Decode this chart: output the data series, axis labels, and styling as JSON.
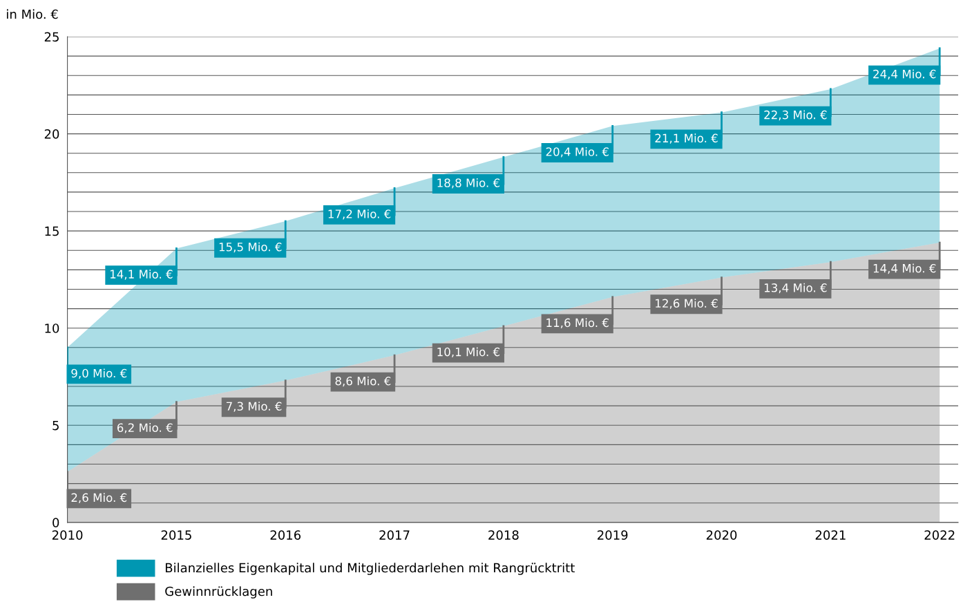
{
  "chart_data": {
    "type": "area",
    "ylabel": "in Mio. €",
    "categories": [
      "2010",
      "2015",
      "2016",
      "2017",
      "2018",
      "2019",
      "2020",
      "2021",
      "2022"
    ],
    "series": [
      {
        "name": "Bilanzielles Eigenkapital und Mitgliederdarlehen mit Rangrücktritt",
        "color": "#0097b2",
        "values": [
          9.0,
          14.1,
          15.5,
          17.2,
          18.8,
          20.4,
          21.1,
          22.3,
          24.4
        ],
        "value_labels": [
          "9,0 Mio. €",
          "14,1 Mio. €",
          "15,5 Mio. €",
          "17,2 Mio. €",
          "18,8 Mio. €",
          "20,4 Mio. €",
          "21,1 Mio. €",
          "22,3 Mio. €",
          "24,4 Mio. €"
        ]
      },
      {
        "name": "Gewinnrücklagen",
        "color": "#6f6f6f",
        "values": [
          2.6,
          6.2,
          7.3,
          8.6,
          10.1,
          11.6,
          12.6,
          13.4,
          14.4
        ],
        "value_labels": [
          "2,6 Mio. €",
          "6,2 Mio. €",
          "7,3 Mio. €",
          "8,6 Mio. €",
          "10,1 Mio. €",
          "11,6 Mio. €",
          "12,6 Mio. €",
          "13,4 Mio. €",
          "14,4 Mio. €"
        ]
      }
    ],
    "ylim": [
      0,
      25
    ],
    "yticks": [
      0,
      {
        "value": 1,
        "label": null
      },
      {
        "value": 2,
        "label": null
      },
      {
        "value": 3,
        "label": null
      },
      {
        "value": 4,
        "label": null
      },
      5,
      {
        "value": 6,
        "label": null
      },
      {
        "value": 7,
        "label": null
      },
      {
        "value": 8,
        "label": null
      },
      {
        "value": 9,
        "label": null
      },
      10,
      {
        "value": 11,
        "label": null
      },
      {
        "value": 12,
        "label": null
      },
      {
        "value": 13,
        "label": null
      },
      {
        "value": 14,
        "label": null
      },
      15,
      {
        "value": 16,
        "label": null
      },
      {
        "value": 17,
        "label": null
      },
      {
        "value": 18,
        "label": null
      },
      {
        "value": 19,
        "label": null
      },
      20,
      {
        "value": 21,
        "label": null
      },
      {
        "value": 22,
        "label": null
      },
      {
        "value": 23,
        "label": null
      },
      {
        "value": 24,
        "label": null
      },
      25
    ],
    "grid": "y",
    "legend": "bottom left"
  }
}
